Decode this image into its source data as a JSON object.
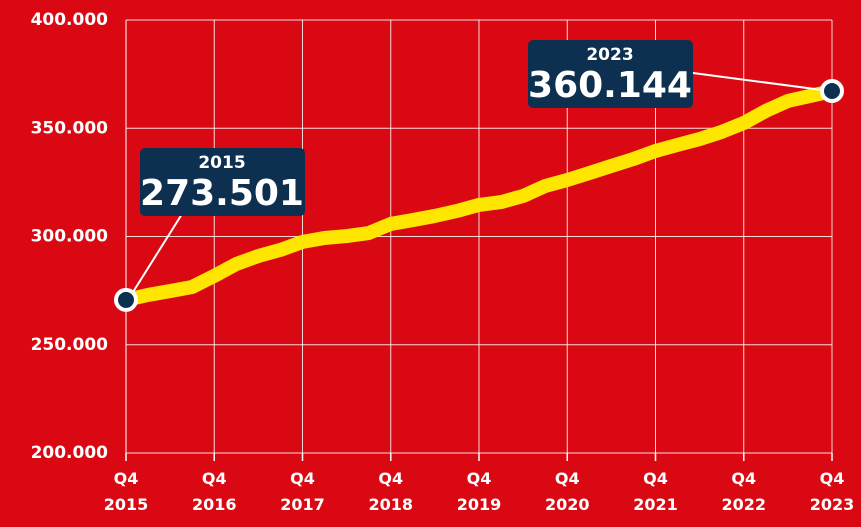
{
  "chart_data": {
    "type": "line",
    "categories": [
      "Q4 2015",
      null,
      null,
      null,
      "Q4 2016",
      null,
      null,
      null,
      "Q4 2017",
      null,
      null,
      null,
      "Q4 2018",
      null,
      null,
      null,
      "Q4 2019",
      null,
      null,
      null,
      "Q4 2020",
      null,
      null,
      null,
      "Q4 2021",
      null,
      null,
      null,
      "Q4 2022",
      null,
      null,
      null,
      "Q4 2023"
    ],
    "series": [
      {
        "color": "#ffe600",
        "values": [
          270700,
          273000,
          274800,
          276700,
          281800,
          287300,
          291000,
          293800,
          297500,
          299300,
          300200,
          301600,
          305800,
          307600,
          309500,
          311800,
          314600,
          315900,
          318700,
          323300,
          326100,
          329300,
          332600,
          335800,
          339500,
          342300,
          345000,
          348300,
          352400,
          358000,
          362600,
          364900,
          367200
        ]
      }
    ],
    "ylim": [
      200000,
      400000
    ],
    "yticks": [
      {
        "value": 200000,
        "label": "200.000"
      },
      {
        "value": 250000,
        "label": "250.000"
      },
      {
        "value": 300000,
        "label": "300.000"
      },
      {
        "value": 350000,
        "label": "350.000"
      },
      {
        "value": 400000,
        "label": "400.000"
      }
    ],
    "grid": true,
    "annotations": [
      {
        "year": "2015",
        "value": "273.501"
      },
      {
        "year": "2023",
        "value": "360.144"
      }
    ]
  }
}
